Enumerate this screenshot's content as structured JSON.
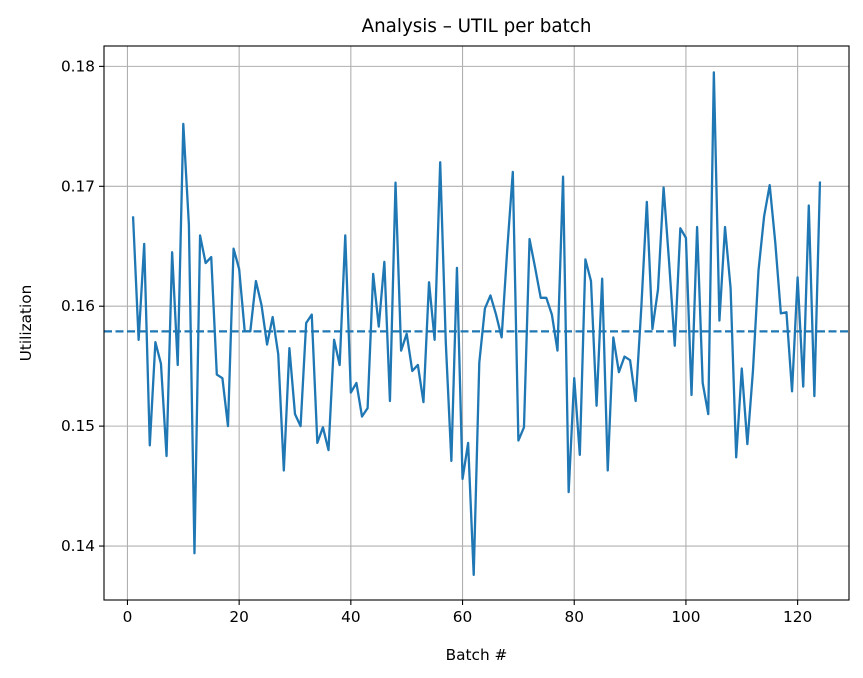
{
  "chart_data": {
    "type": "line",
    "title": "Analysis – UTIL per batch",
    "xlabel": "Batch #",
    "ylabel": "Utilization",
    "xlim": [
      -4.2,
      129.2
    ],
    "ylim": [
      0.1355,
      0.1817
    ],
    "xticks": [
      0,
      20,
      40,
      60,
      80,
      100,
      120
    ],
    "xtick_labels": [
      "0",
      "20",
      "40",
      "60",
      "80",
      "100",
      "120"
    ],
    "yticks": [
      0.14,
      0.15,
      0.16,
      0.17,
      0.18
    ],
    "ytick_labels": [
      "0.14",
      "0.15",
      "0.16",
      "0.17",
      "0.18"
    ],
    "grid": true,
    "series": [
      {
        "color": "#1f77b4",
        "x": [
          1,
          2,
          3,
          4,
          5,
          6,
          7,
          8,
          9,
          10,
          11,
          12,
          13,
          14,
          15,
          16,
          17,
          18,
          19,
          20,
          21,
          22,
          23,
          24,
          25,
          26,
          27,
          28,
          29,
          30,
          31,
          32,
          33,
          34,
          35,
          36,
          37,
          38,
          39,
          40,
          41,
          42,
          43,
          44,
          45,
          46,
          47,
          48,
          49,
          50,
          51,
          52,
          53,
          54,
          55,
          56,
          57,
          58,
          59,
          60,
          61,
          62,
          63,
          64,
          65,
          66,
          67,
          68,
          69,
          70,
          71,
          72,
          73,
          74,
          75,
          76,
          77,
          78,
          79,
          80,
          81,
          82,
          83,
          84,
          85,
          86,
          87,
          88,
          89,
          90,
          91,
          92,
          93,
          94,
          95,
          96,
          97,
          98,
          99,
          100,
          101,
          102,
          103,
          104,
          105,
          106,
          107,
          108,
          109,
          110,
          111,
          112,
          113,
          114,
          115,
          116,
          117,
          118,
          119,
          120,
          121,
          122,
          123,
          124
        ],
        "values": [
          0.1675,
          0.1572,
          0.1652,
          0.1484,
          0.157,
          0.1552,
          0.1475,
          0.1645,
          0.1551,
          0.1752,
          0.1668,
          0.1394,
          0.1659,
          0.1636,
          0.1641,
          0.1543,
          0.154,
          0.15,
          0.1648,
          0.1631,
          0.1579,
          0.1579,
          0.1621,
          0.1601,
          0.1568,
          0.1591,
          0.156,
          0.1463,
          0.1565,
          0.151,
          0.15,
          0.1586,
          0.1593,
          0.1486,
          0.1499,
          0.148,
          0.1572,
          0.1551,
          0.1659,
          0.1528,
          0.1536,
          0.1508,
          0.1515,
          0.1627,
          0.1583,
          0.1637,
          0.1521,
          0.1703,
          0.1563,
          0.1577,
          0.1546,
          0.1551,
          0.152,
          0.162,
          0.1572,
          0.172,
          0.157,
          0.1471,
          0.1632,
          0.1456,
          0.1486,
          0.1376,
          0.1553,
          0.1598,
          0.1609,
          0.1593,
          0.1574,
          0.1647,
          0.1712,
          0.1488,
          0.1499,
          0.1656,
          0.1632,
          0.1607,
          0.1607,
          0.1593,
          0.1563,
          0.1708,
          0.1445,
          0.154,
          0.1476,
          0.1639,
          0.1621,
          0.1517,
          0.1623,
          0.1463,
          0.1574,
          0.1545,
          0.1558,
          0.1555,
          0.1521,
          0.1598,
          0.1687,
          0.1581,
          0.1614,
          0.1699,
          0.1636,
          0.1567,
          0.1665,
          0.1657,
          0.1526,
          0.1666,
          0.1536,
          0.151,
          0.1795,
          0.1588,
          0.1666,
          0.1615,
          0.1474,
          0.1548,
          0.1485,
          0.1546,
          0.163,
          0.1675,
          0.1701,
          0.1653,
          0.1594,
          0.1595,
          0.1529,
          0.1624,
          0.1533,
          0.1684,
          0.1525,
          0.1704
        ]
      }
    ],
    "hline": {
      "y": 0.1579,
      "style": "dashed",
      "color": "#1f77b4"
    }
  }
}
